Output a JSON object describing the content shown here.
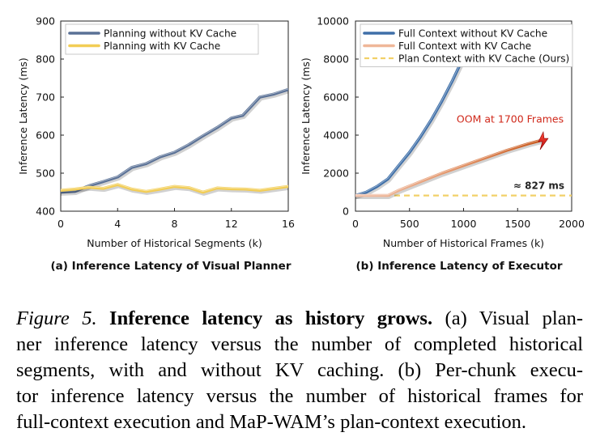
{
  "chart_data": [
    {
      "type": "line",
      "title": "(a) Inference Latency of Visual Planner",
      "xlabel": "Number of Historical Segments (k)",
      "ylabel": "Inference Latency (ms)",
      "xlim": [
        0,
        16
      ],
      "ylim": [
        400,
        900
      ],
      "xticks": [
        0,
        4,
        8,
        12,
        16
      ],
      "yticks": [
        400,
        500,
        600,
        700,
        800,
        900
      ],
      "legend": "top-left",
      "series": [
        {
          "name": "Planning without KV Cache",
          "color": "#5a7196",
          "x": [
            0,
            1,
            2,
            3,
            4,
            5,
            6,
            7,
            8,
            9,
            10,
            11,
            12,
            12.8,
            14,
            15,
            16
          ],
          "y": [
            450,
            452,
            467,
            478,
            490,
            515,
            525,
            543,
            555,
            575,
            598,
            620,
            645,
            652,
            700,
            708,
            720
          ]
        },
        {
          "name": "Planning with KV Cache",
          "color": "#f2cd55",
          "x": [
            0,
            1,
            2,
            3,
            4,
            5,
            6,
            7,
            8,
            9,
            10,
            11,
            12,
            13,
            14,
            15,
            16
          ],
          "y": [
            455,
            458,
            463,
            460,
            470,
            458,
            452,
            458,
            465,
            462,
            450,
            461,
            459,
            458,
            455,
            460,
            465
          ]
        }
      ]
    },
    {
      "type": "line",
      "title": "(b) Inference Latency of Executor",
      "xlabel": "Number of Historical Frames (k)",
      "ylabel": "Inference Latency (ms)",
      "xlim": [
        0,
        2000
      ],
      "ylim": [
        0,
        10000
      ],
      "xticks": [
        0,
        500,
        1000,
        1500,
        2000
      ],
      "yticks": [
        0,
        2000,
        4000,
        6000,
        8000,
        10000
      ],
      "legend": "top-left",
      "annotations": [
        "OOM at 1700 Frames",
        "≈ 827 ms"
      ],
      "series": [
        {
          "name": "Full Context without KV Cache",
          "color": "#3f6fa8",
          "x": [
            0,
            100,
            200,
            300,
            400,
            500,
            600,
            700,
            800,
            900,
            1000,
            1060
          ],
          "y": [
            827,
            1000,
            1300,
            1700,
            2400,
            3100,
            3900,
            4800,
            5800,
            6900,
            8100,
            9000
          ]
        },
        {
          "name": "Full Context with KV Cache",
          "color": "#e8a080",
          "x": [
            0,
            300,
            400,
            600,
            800,
            1000,
            1200,
            1400,
            1600,
            1700
          ],
          "y": [
            827,
            827,
            1100,
            1550,
            2000,
            2400,
            2800,
            3200,
            3550,
            3700
          ]
        },
        {
          "name": "Plan Context with KV Cache (Ours)",
          "color": "#f2d068",
          "dashed": true,
          "x": [
            0,
            2000
          ],
          "y": [
            827,
            827
          ]
        }
      ]
    }
  ],
  "caption": {
    "lines": [
      {
        "fig": "Figure 5.",
        "bold": "Inference latency as history grows.",
        "text": "(a) Visual plan-"
      },
      {
        "text": "ner inference latency versus the number of completed historical"
      },
      {
        "text": "segments, with and without KV caching.  (b) Per-chunk execu-"
      },
      {
        "text": "tor inference latency versus the number of historical frames for"
      },
      {
        "text": "full-context execution and MaP-WAM’s plan-context execution."
      }
    ]
  }
}
